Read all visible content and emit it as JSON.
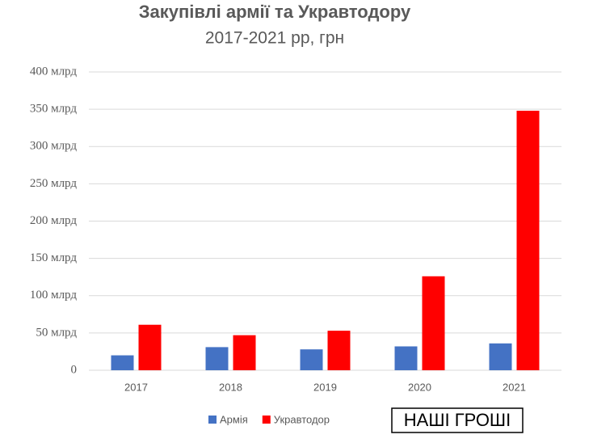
{
  "chart_data": {
    "type": "bar",
    "title": "Закупівлі армії та Укравтодору",
    "subtitle": "2017-2021 рр, грн",
    "categories": [
      "2017",
      "2018",
      "2019",
      "2020",
      "2021"
    ],
    "series": [
      {
        "name": "Армія",
        "color": "#4472c4",
        "values": [
          20,
          31,
          28,
          32,
          36
        ]
      },
      {
        "name": "Укравтодор",
        "color": "#ff0000",
        "values": [
          61,
          47,
          53,
          126,
          348
        ]
      }
    ],
    "ylim": [
      0,
      400
    ],
    "yticks": [
      0,
      {
        "value": 50,
        "label": "50 млрд"
      },
      {
        "value": 100,
        "label": "100 млрд"
      },
      {
        "value": 150,
        "label": "150 млрд"
      },
      {
        "value": 200,
        "label": "200 млрд"
      },
      {
        "value": 250,
        "label": "250 млрд"
      },
      {
        "value": 300,
        "label": "300 млрд"
      },
      {
        "value": 350,
        "label": "350 млрд"
      },
      {
        "value": 400,
        "label": "400 млрд"
      }
    ],
    "grid": true,
    "legend": "bottom",
    "watermark": "НАШІ ГРОШІ"
  }
}
